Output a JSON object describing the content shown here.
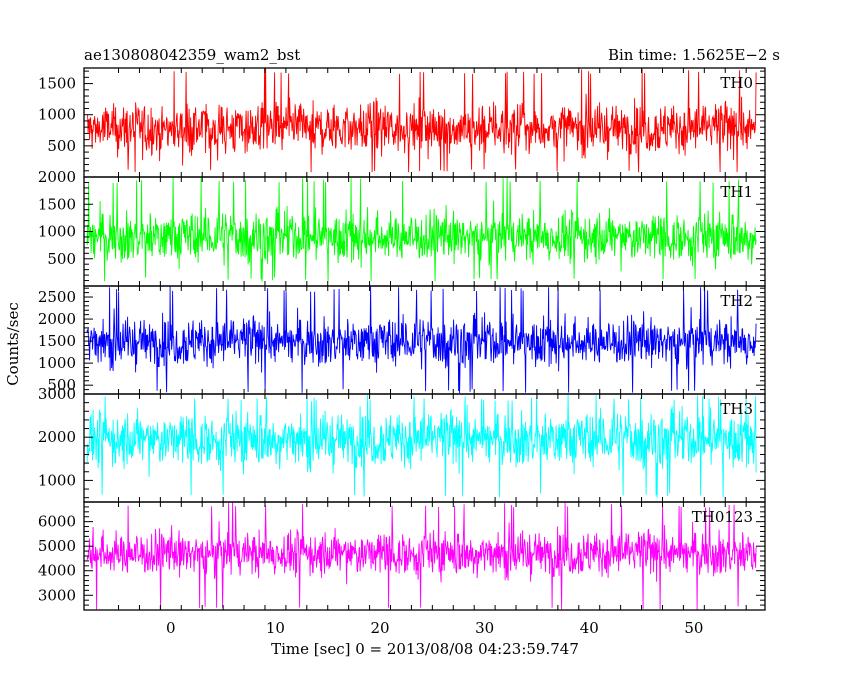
{
  "header": {
    "left_title": "ae130808042359_wam2_bst",
    "right_title": "Bin time: 1.5625E−2 s"
  },
  "chart_data": {
    "type": "line",
    "shared_x": {
      "label": "Time [sec] 0 = 2013/08/08 04:23:59.747",
      "ticks": [
        0,
        10,
        20,
        30,
        40,
        50
      ],
      "range": [
        -8.3,
        56.8
      ],
      "data_range": [
        -8.0,
        56.0
      ]
    },
    "ylabel": "Counts/sec",
    "grid": false,
    "panels": [
      {
        "name": "TH0",
        "color": "#ff0000",
        "ylim": [
          0,
          1750
        ],
        "yticks": [
          500,
          1000,
          1500
        ],
        "trace": {
          "mean": 780,
          "spread": 330,
          "min": 60,
          "max": 1750
        }
      },
      {
        "name": "TH1",
        "color": "#00ff00",
        "ylim": [
          0,
          2000
        ],
        "yticks": [
          500,
          1000,
          1500,
          2000
        ],
        "trace": {
          "mean": 900,
          "spread": 380,
          "min": 80,
          "max": 2000
        }
      },
      {
        "name": "TH2",
        "color": "#0000ff",
        "ylim": [
          300,
          2750
        ],
        "yticks": [
          500,
          1000,
          1500,
          2000,
          2500
        ],
        "trace": {
          "mean": 1480,
          "spread": 450,
          "min": 320,
          "max": 2750
        }
      },
      {
        "name": "TH3",
        "color": "#00ffff",
        "ylim": [
          500,
          3000
        ],
        "yticks": [
          1000,
          2000,
          3000
        ],
        "trace": {
          "mean": 1950,
          "spread": 520,
          "min": 600,
          "max": 3000
        }
      },
      {
        "name": "TH0123",
        "color": "#ff00ff",
        "ylim": [
          2400,
          6800
        ],
        "yticks": [
          3000,
          4000,
          5000,
          6000
        ],
        "trace": {
          "mean": 4700,
          "spread": 750,
          "min": 2400,
          "max": 6800
        }
      }
    ]
  }
}
